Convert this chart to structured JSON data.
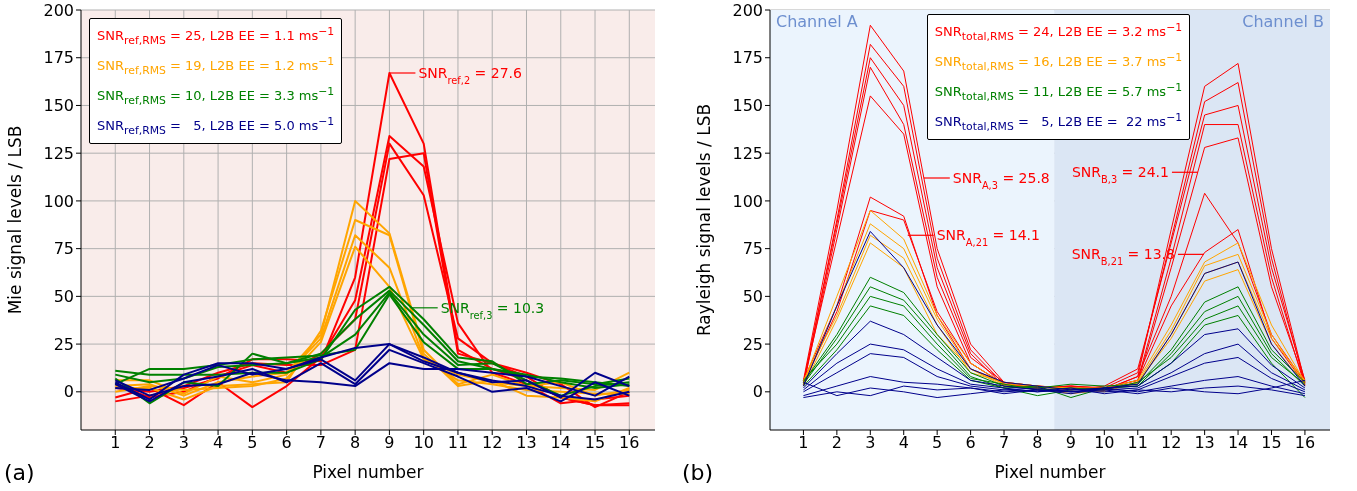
{
  "chart_data": [
    {
      "type": "line",
      "xlabel": "Pixel number",
      "ylabel": "Mie signal levels / LSB",
      "x": [
        1,
        2,
        3,
        4,
        5,
        6,
        7,
        8,
        9,
        10,
        11,
        12,
        13,
        14,
        15,
        16
      ],
      "xlim": [
        0,
        16.75
      ],
      "xticks": [
        1,
        2,
        3,
        4,
        5,
        6,
        7,
        8,
        9,
        10,
        11,
        12,
        13,
        14,
        15,
        16
      ],
      "ylim": [
        -20,
        200
      ],
      "yticks": [
        0,
        25,
        50,
        75,
        100,
        125,
        150,
        175,
        200
      ],
      "grid": true,
      "legend": "top left",
      "annotations": [
        {
          "text": "SNR$_{ref,2}$ = 27.6",
          "x": 9,
          "y": 167
        },
        {
          "text": "SNR$_{ref,3}$ = 10.3",
          "x": 9.65,
          "y": 44
        },
        "(a)"
      ],
      "series": [
        {
          "name": "SNR$_{ref,RMS}$ = 25, L2B EE = 1.1 ms$^{−1}$",
          "color": "#ff0000",
          "values": [
            -5,
            -2,
            2,
            7,
            17,
            17,
            16,
            60,
            167,
            130,
            22,
            12,
            6,
            -3,
            -7,
            -7
          ]
        },
        {
          "color": "#ff0000",
          "values": [
            -3,
            2,
            -7,
            5,
            -8,
            3,
            18,
            48,
            134,
            118,
            36,
            10,
            4,
            -6,
            -4,
            -2
          ]
        },
        {
          "color": "#ff0000",
          "values": [
            4,
            -3,
            0,
            8,
            14,
            10,
            20,
            38,
            130,
            103,
            28,
            15,
            8,
            -3,
            -7,
            -6
          ]
        },
        {
          "color": "#ff0000",
          "values": [
            2,
            0,
            3,
            10,
            15,
            14,
            14,
            22,
            122,
            125,
            20,
            15,
            10,
            4,
            -8,
            0
          ]
        },
        {
          "name": "SNR$_{ref,RMS}$ = 19, L2B EE = 1.2 ms$^{−1}$",
          "color": "#ffa500",
          "values": [
            3,
            4,
            -2,
            5,
            8,
            10,
            30,
            100,
            83,
            22,
            4,
            9,
            3,
            2,
            1,
            10
          ]
        },
        {
          "color": "#ffa500",
          "values": [
            2,
            2,
            -4,
            3,
            4,
            5,
            32,
            90,
            82,
            20,
            3,
            6,
            -2,
            -3,
            -5,
            2
          ]
        },
        {
          "color": "#ffa500",
          "values": [
            6,
            6,
            -1,
            8,
            5,
            9,
            28,
            82,
            65,
            18,
            6,
            4,
            1,
            0,
            -1,
            -1
          ]
        },
        {
          "color": "#ffa500",
          "values": [
            0,
            3,
            1,
            2,
            3,
            7,
            26,
            76,
            55,
            17,
            9,
            5,
            3,
            5,
            -2,
            1
          ]
        },
        {
          "name": "SNR$_{ref,RMS}$ = 10, L2B EE = 3.3 ms$^{−1}$",
          "color": "#008000",
          "values": [
            11,
            9,
            9,
            9,
            10,
            10,
            17,
            43,
            55,
            38,
            18,
            16,
            4,
            6,
            4,
            7
          ]
        },
        {
          "color": "#008000",
          "values": [
            9,
            5,
            7,
            13,
            14,
            15,
            20,
            38,
            53,
            35,
            16,
            12,
            9,
            5,
            2,
            4
          ]
        },
        {
          "color": "#008000",
          "values": [
            7,
            -6,
            5,
            3,
            20,
            15,
            18,
            30,
            52,
            30,
            14,
            15,
            6,
            -2,
            3,
            5
          ]
        },
        {
          "color": "#008000",
          "values": [
            4,
            12,
            12,
            14,
            17,
            18,
            19,
            22,
            51,
            26,
            12,
            12,
            8,
            7,
            5,
            3
          ]
        },
        {
          "name": "SNR$_{ref,RMS}$ =   5, L2B EE = 5.0 ms$^{−1}$",
          "color": "#00008b",
          "values": [
            5,
            -4,
            9,
            15,
            15,
            12,
            18,
            23,
            25,
            18,
            10,
            5,
            6,
            -3,
            10,
            3
          ]
        },
        {
          "color": "#00008b",
          "values": [
            4,
            -5,
            5,
            8,
            12,
            5,
            15,
            4,
            22,
            15,
            8,
            0,
            2,
            -5,
            5,
            -2
          ]
        },
        {
          "color": "#00008b",
          "values": [
            6,
            -2,
            3,
            4,
            10,
            6,
            5,
            3,
            15,
            12,
            12,
            10,
            8,
            3,
            -2,
            8
          ]
        },
        {
          "color": "#00008b",
          "values": [
            2,
            1,
            7,
            14,
            9,
            12,
            17,
            6,
            25,
            16,
            10,
            6,
            3,
            -2,
            -4,
            0
          ]
        }
      ]
    },
    {
      "type": "line",
      "xlabel": "Pixel number",
      "ylabel": "Rayleigh signal levels / LSB",
      "x": [
        1,
        2,
        3,
        4,
        5,
        6,
        7,
        8,
        9,
        10,
        11,
        12,
        13,
        14,
        15,
        16
      ],
      "xlim": [
        0,
        16.75
      ],
      "xticks": [
        1,
        2,
        3,
        4,
        5,
        6,
        7,
        8,
        9,
        10,
        11,
        12,
        13,
        14,
        15,
        16
      ],
      "ylim": [
        -20,
        200
      ],
      "yticks": [
        0,
        25,
        50,
        75,
        100,
        125,
        150,
        175,
        200
      ],
      "grid": true,
      "legend": "top",
      "bands": [
        {
          "axis": "x",
          "from": 0,
          "to": 8.5,
          "label": "Channel A",
          "color": "#ebf4fd"
        },
        {
          "axis": "x",
          "from": 8.5,
          "to": 16.75,
          "label": "Channel B",
          "color": "#dbe6f4"
        }
      ],
      "annotations": [
        {
          "text": "SNR$_{A,3}$ = 25.8",
          "x": 4.6,
          "y": 112
        },
        {
          "text": "SNR$_{A,21}$ = 14.1",
          "x": 4.12,
          "y": 82
        },
        {
          "text": "SNR$_{B,3}$ = 24.1",
          "x": 12.8,
          "y": 115
        },
        {
          "text": "SNR$_{B,21}$ = 13.8",
          "x": 12.98,
          "y": 72
        },
        "(b)"
      ],
      "series": [
        {
          "name": "SNR$_{total,RMS}$ = 24, L2B EE = 3.2 ms$^{−1}$",
          "color": "#ff0000",
          "values": [
            6,
            95,
            192,
            168,
            75,
            25,
            5,
            3,
            2,
            1,
            8,
            85,
            160,
            172,
            75,
            5
          ]
        },
        {
          "color": "#ff0000",
          "values": [
            4,
            90,
            182,
            160,
            70,
            22,
            4,
            2,
            3,
            2,
            10,
            80,
            152,
            162,
            70,
            4
          ]
        },
        {
          "color": "#ff0000",
          "values": [
            5,
            88,
            175,
            150,
            65,
            20,
            3,
            3,
            1,
            3,
            12,
            78,
            145,
            150,
            65,
            6
          ]
        },
        {
          "color": "#ff0000",
          "values": [
            3,
            85,
            170,
            140,
            60,
            18,
            5,
            1,
            2,
            2,
            6,
            70,
            140,
            140,
            60,
            3
          ]
        },
        {
          "color": "#ff0000",
          "values": [
            5,
            80,
            155,
            135,
            55,
            15,
            4,
            2,
            3,
            1,
            5,
            65,
            128,
            133,
            55,
            5
          ]
        },
        {
          "color": "#ff0000",
          "values": [
            6,
            45,
            102,
            92,
            40,
            12,
            5,
            3,
            2,
            1,
            8,
            50,
            104,
            78,
            30,
            5
          ]
        },
        {
          "color": "#ff0000",
          "values": [
            4,
            42,
            95,
            90,
            42,
            15,
            4,
            2,
            3,
            2,
            6,
            45,
            73,
            85,
            28,
            4
          ]
        },
        {
          "name": "SNR$_{total,RMS}$ = 16, L2B EE = 3.7 ms$^{−1}$",
          "color": "#ffa500",
          "values": [
            5,
            50,
            95,
            80,
            40,
            15,
            4,
            3,
            2,
            2,
            6,
            35,
            68,
            78,
            35,
            5
          ]
        },
        {
          "color": "#ffa500",
          "values": [
            4,
            45,
            88,
            75,
            38,
            12,
            3,
            2,
            -1,
            1,
            5,
            32,
            66,
            72,
            30,
            4
          ]
        },
        {
          "color": "#ffa500",
          "values": [
            6,
            40,
            82,
            70,
            35,
            10,
            5,
            3,
            1,
            2,
            4,
            30,
            62,
            68,
            28,
            6
          ]
        },
        {
          "color": "#ffa500",
          "values": [
            3,
            38,
            78,
            65,
            30,
            12,
            4,
            1,
            2,
            0,
            5,
            28,
            58,
            64,
            25,
            4
          ]
        },
        {
          "name": "SNR$_{total,RMS}$ = 11, L2B EE = 5.7 ms$^{−1}$",
          "color": "#008000",
          "values": [
            5,
            30,
            60,
            52,
            30,
            10,
            3,
            2,
            4,
            3,
            4,
            22,
            47,
            55,
            22,
            5
          ]
        },
        {
          "color": "#008000",
          "values": [
            4,
            28,
            55,
            48,
            28,
            8,
            2,
            3,
            -3,
            2,
            3,
            20,
            42,
            50,
            20,
            3
          ]
        },
        {
          "color": "#008000",
          "values": [
            6,
            25,
            50,
            45,
            25,
            7,
            4,
            1,
            2,
            1,
            5,
            18,
            38,
            45,
            18,
            4
          ]
        },
        {
          "color": "#008000",
          "values": [
            3,
            22,
            45,
            40,
            22,
            6,
            2,
            -2,
            1,
            2,
            3,
            15,
            35,
            40,
            15,
            -3
          ]
        },
        {
          "name": "SNR$_{total,RMS}$ =   5, L2B EE =  22 ms$^{−1}$",
          "color": "#00008b",
          "values": [
            3,
            45,
            84,
            65,
            35,
            12,
            5,
            3,
            1,
            2,
            4,
            30,
            62,
            68,
            25,
            3
          ]
        },
        {
          "color": "#00008b",
          "values": [
            2,
            20,
            37,
            30,
            18,
            6,
            3,
            1,
            0,
            2,
            3,
            15,
            30,
            33,
            14,
            2
          ]
        },
        {
          "color": "#00008b",
          "values": [
            1,
            15,
            25,
            22,
            12,
            4,
            2,
            0,
            1,
            1,
            2,
            10,
            20,
            25,
            10,
            1
          ]
        },
        {
          "color": "#00008b",
          "values": [
            0,
            10,
            20,
            18,
            8,
            3,
            1,
            2,
            0,
            0,
            1,
            8,
            15,
            18,
            7,
            0
          ]
        },
        {
          "color": "#00008b",
          "values": [
            -2,
            3,
            8,
            5,
            4,
            2,
            0,
            1,
            -1,
            2,
            0,
            3,
            6,
            8,
            3,
            -1
          ]
        },
        {
          "color": "#00008b",
          "values": [
            5,
            -2,
            2,
            0,
            -3,
            -1,
            1,
            0,
            2,
            -1,
            1,
            0,
            2,
            3,
            1,
            -2
          ]
        },
        {
          "color": "#00008b",
          "values": [
            -3,
            0,
            -2,
            3,
            1,
            2,
            -1,
            1,
            0,
            1,
            -1,
            2,
            0,
            -1,
            2,
            6
          ]
        }
      ]
    }
  ]
}
